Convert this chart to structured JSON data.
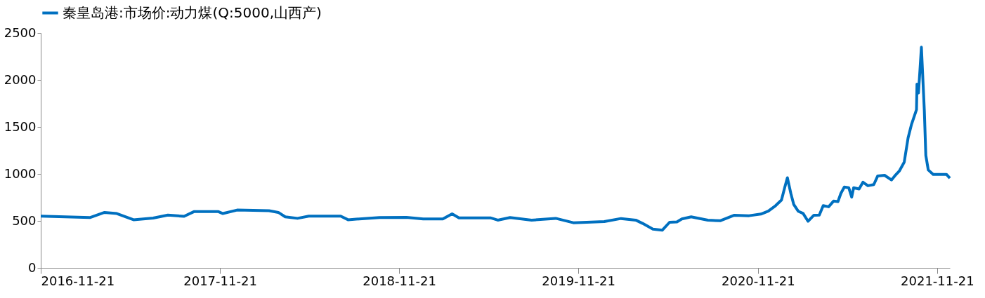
{
  "chart_data": {
    "type": "line",
    "legend": "top",
    "grid": false,
    "marker": "none",
    "line_style": "solid",
    "x": [
      "2016-11-21",
      "2017-03-01",
      "2017-03-31",
      "2017-04-25",
      "2017-05-29",
      "2017-07-08",
      "2017-08-07",
      "2017-09-09",
      "2017-09-29",
      "2017-11-18",
      "2017-11-27",
      "2017-12-26",
      "2018-03-01",
      "2018-03-20",
      "2018-04-03",
      "2018-04-28",
      "2018-05-21",
      "2018-07-25",
      "2018-08-09",
      "2018-10-12",
      "2018-12-06",
      "2019-01-09",
      "2019-02-18",
      "2019-03-09",
      "2019-03-23",
      "2019-05-26",
      "2019-06-10",
      "2019-07-05",
      "2019-08-18",
      "2019-10-06",
      "2019-11-11",
      "2020-01-13",
      "2020-02-16",
      "2020-03-17",
      "2020-03-31",
      "2020-04-21",
      "2020-05-10",
      "2020-05-25",
      "2020-06-09",
      "2020-06-19",
      "2020-07-08",
      "2020-08-11",
      "2020-09-05",
      "2020-10-04",
      "2020-11-03",
      "2020-11-27",
      "2020-12-12",
      "2020-12-27",
      "2021-01-08",
      "2021-01-15",
      "2021-01-20",
      "2021-01-27",
      "2021-02-02",
      "2021-02-11",
      "2021-02-21",
      "2021-03-03",
      "2021-03-15",
      "2021-03-26",
      "2021-04-03",
      "2021-04-14",
      "2021-04-24",
      "2021-05-03",
      "2021-05-09",
      "2021-05-16",
      "2021-05-25",
      "2021-05-31",
      "2021-06-04",
      "2021-06-15",
      "2021-06-23",
      "2021-07-03",
      "2021-07-15",
      "2021-07-23",
      "2021-08-06",
      "2021-08-20",
      "2021-08-27",
      "2021-09-05",
      "2021-09-15",
      "2021-09-23",
      "2021-09-30",
      "2021-10-10",
      "2021-10-11",
      "2021-10-14",
      "2021-10-17",
      "2021-10-20",
      "2021-10-26",
      "2021-10-29",
      "2021-11-03",
      "2021-11-13",
      "2021-12-10",
      "2021-12-17"
    ],
    "series": [
      {
        "name": "秦皇岛港:市场价:动力煤(Q:5000,山西产)",
        "color": "#0070c0",
        "values": [
          550,
          535,
          590,
          578,
          512,
          530,
          562,
          548,
          598,
          598,
          578,
          615,
          608,
          590,
          543,
          527,
          550,
          550,
          512,
          536,
          538,
          520,
          520,
          575,
          532,
          532,
          508,
          536,
          508,
          527,
          480,
          492,
          525,
          508,
          473,
          413,
          401,
          485,
          489,
          520,
          543,
          508,
          501,
          560,
          555,
          572,
          603,
          662,
          722,
          864,
          959,
          793,
          674,
          603,
          579,
          496,
          560,
          562,
          662,
          650,
          710,
          705,
          793,
          860,
          853,
          753,
          853,
          840,
          912,
          874,
          886,
          978,
          985,
          935,
          980,
          1030,
          1125,
          1387,
          1529,
          1683,
          1956,
          1861,
          2099,
          2348,
          1671,
          1197,
          1042,
          995,
          995,
          954
        ]
      }
    ],
    "xlim": [
      "2016-11-21",
      "2021-12-17"
    ],
    "xticks": [
      "2016-11-21",
      "2017-11-21",
      "2018-11-21",
      "2019-11-21",
      "2020-11-21",
      "2021-11-21"
    ],
    "ylim": [
      0,
      2500
    ],
    "yticks": [
      0,
      500,
      1000,
      1500,
      2000,
      2500
    ]
  }
}
